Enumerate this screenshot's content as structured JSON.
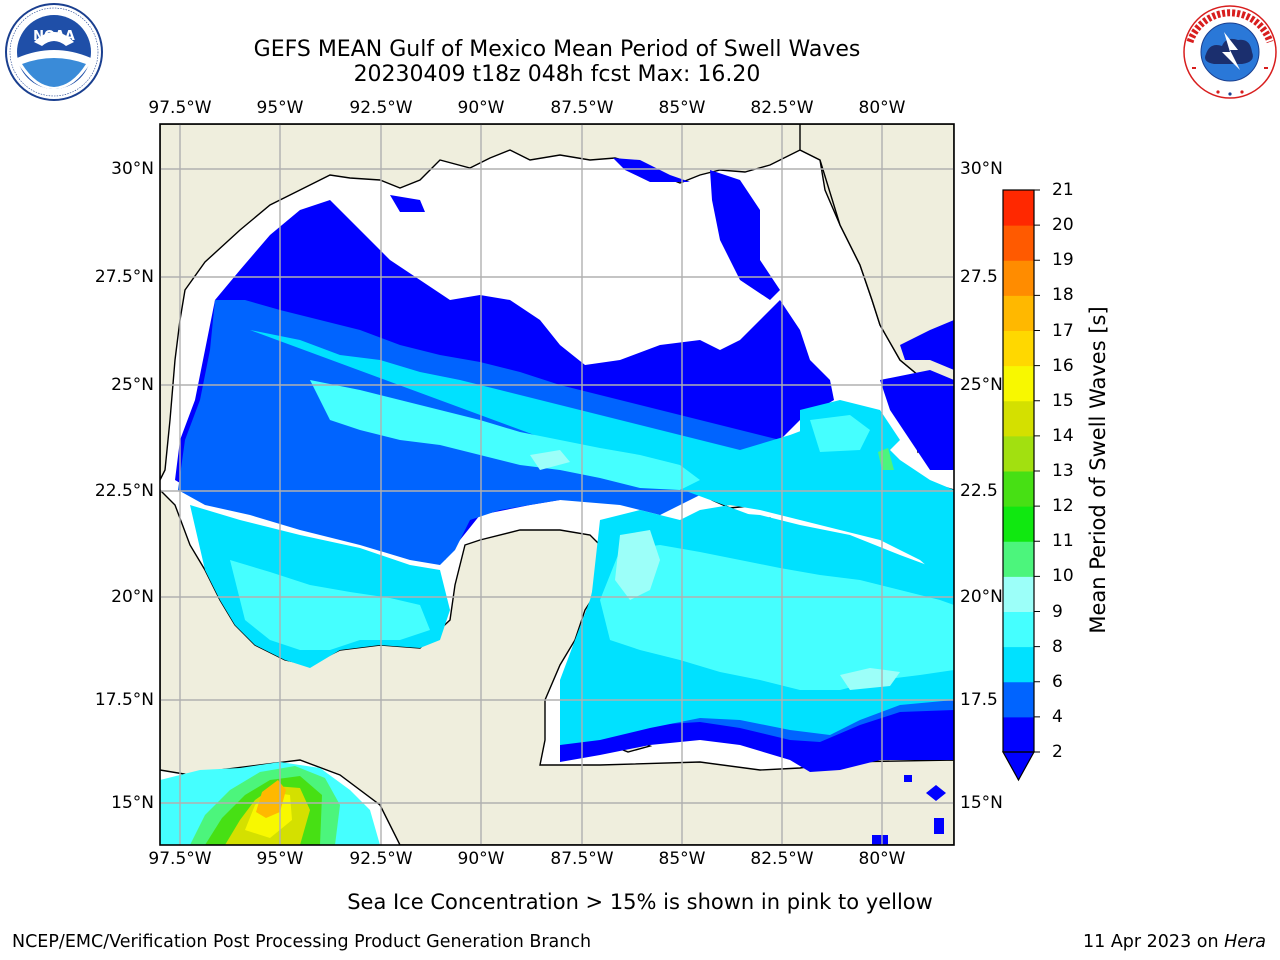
{
  "title": {
    "line1": "GEFS MEAN Gulf of Mexico Mean Period of Swell Waves",
    "line2": "20230409 t18z 048h fcst   Max: 16.20"
  },
  "logos": {
    "left": {
      "icon": "noaa-logo",
      "text": "NOAA",
      "ring_text": "NATIONAL OCEANIC AND ATMOSPHERIC ADMINISTRATION · U.S. DEPARTMENT OF COMMERCE"
    },
    "right": {
      "icon": "nws-logo",
      "ring_text": "NATIONAL WEATHER SERVICE"
    }
  },
  "map": {
    "region": "Gulf of Mexico",
    "lon_ticks": [
      "97.5°W",
      "95°W",
      "92.5°W",
      "90°W",
      "87.5°W",
      "85°W",
      "82.5°W",
      "80°W"
    ],
    "lat_ticks_left": [
      "30°N",
      "27.5°N",
      "25°N",
      "22.5°N",
      "20°N",
      "17.5°N",
      "15°N"
    ],
    "lat_ticks_right": [
      "30°N",
      "27.5",
      "25°N",
      "22.5",
      "20°N",
      "17.5",
      "15°N"
    ],
    "colors": {
      "land": "#efeedd",
      "no_data": "#ffffff",
      "grid": "#b0b0b0"
    }
  },
  "colorbar": {
    "label": "Mean Period of Swell Waves [s]",
    "ticks": [
      "2",
      "4",
      "6",
      "8",
      "9",
      "10",
      "11",
      "12",
      "13",
      "14",
      "15",
      "16",
      "17",
      "18",
      "19",
      "20",
      "21"
    ],
    "colors": [
      "#0000ff",
      "#0064ff",
      "#00e1ff",
      "#45ffff",
      "#9cfff9",
      "#4cf57c",
      "#10e810",
      "#47e014",
      "#a2e010",
      "#d4e000",
      "#f8f800",
      "#ffd800",
      "#ffb800",
      "#ff8c00",
      "#ff5a00",
      "#ff2800",
      "#ff0000"
    ],
    "extend": "min"
  },
  "note": "Sea Ice Concentration > 15% is shown in pink to yellow",
  "footer": {
    "left": "NCEP/EMC/Verification Post Processing Product Generation Branch",
    "right_date": "11 Apr 2023 on ",
    "right_machine": "Hera"
  }
}
